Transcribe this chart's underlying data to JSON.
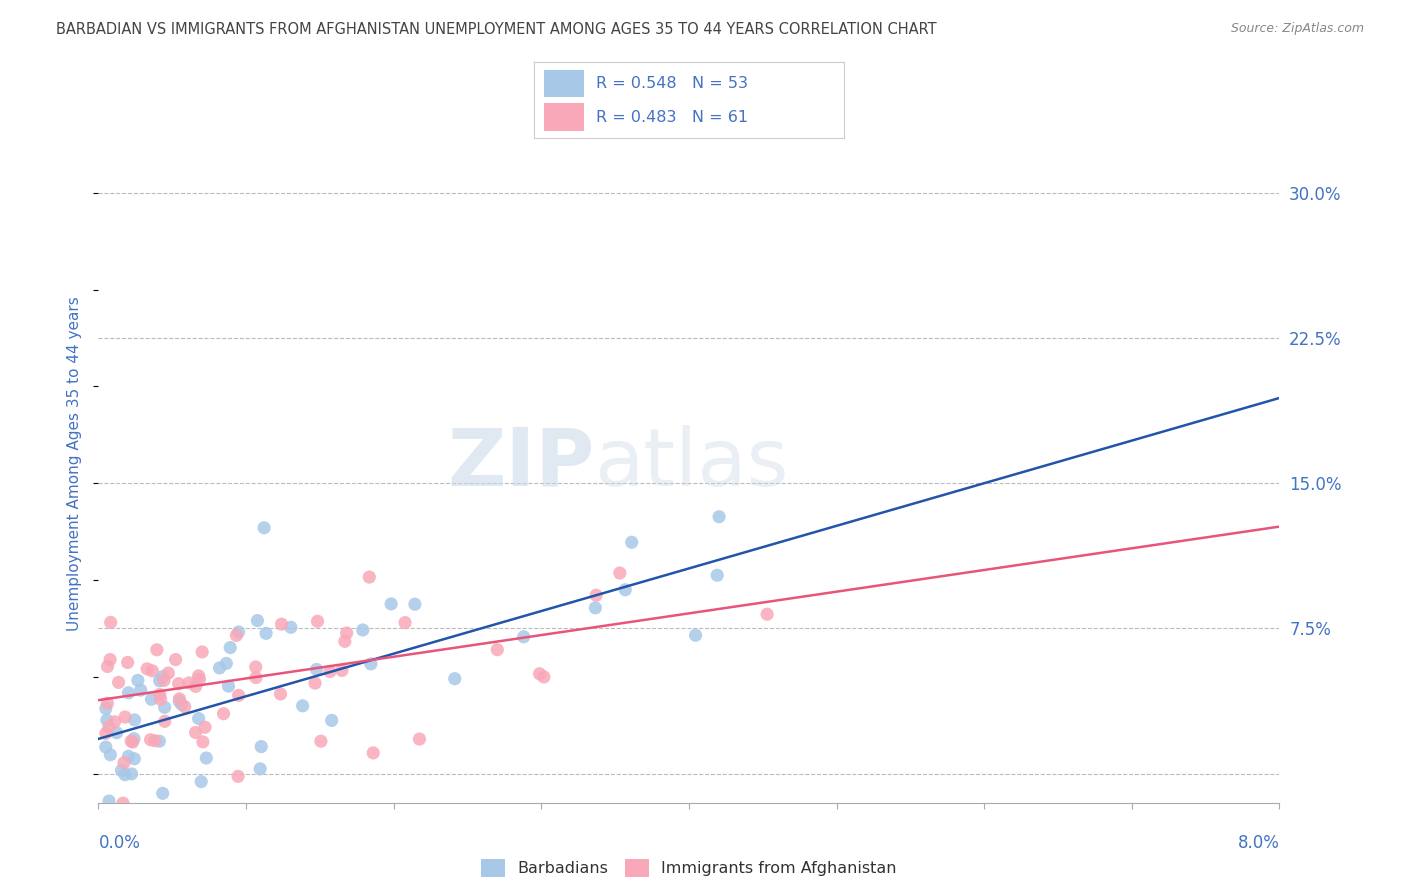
{
  "title": "BARBADIAN VS IMMIGRANTS FROM AFGHANISTAN UNEMPLOYMENT AMONG AGES 35 TO 44 YEARS CORRELATION CHART",
  "source": "Source: ZipAtlas.com",
  "ylabel": "Unemployment Among Ages 35 to 44 years",
  "watermark_zip": "ZIP",
  "watermark_atlas": "atlas",
  "xlim": [
    0.0,
    0.08
  ],
  "ylim": [
    -0.015,
    0.335
  ],
  "yticks": [
    0.0,
    0.075,
    0.15,
    0.225,
    0.3
  ],
  "yticklabels": [
    "",
    "7.5%",
    "15.0%",
    "22.5%",
    "30.0%"
  ],
  "series": [
    {
      "name": "Barbadians",
      "R": 0.548,
      "N": 53,
      "color_scatter": "#a8c8e8",
      "color_line": "#2255aa",
      "intercept": 0.018,
      "slope": 2.2,
      "noise_std": 0.025,
      "seed": 42
    },
    {
      "name": "Immigrants from Afghanistan",
      "R": 0.483,
      "N": 61,
      "color_scatter": "#f8a8b8",
      "color_line": "#e8557a",
      "intercept": 0.038,
      "slope": 1.12,
      "noise_std": 0.025,
      "seed": 77
    }
  ],
  "background_color": "#ffffff",
  "grid_color": "#bbbbbb",
  "title_color": "#444444",
  "axis_label_color": "#4472c4",
  "tick_color": "#4472c4",
  "legend_text_color": "#4472c4"
}
